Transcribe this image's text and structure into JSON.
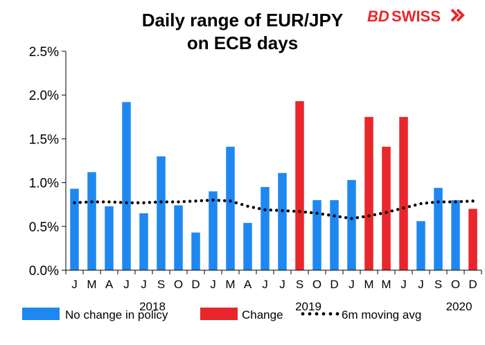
{
  "chart_data": {
    "type": "bar",
    "title_line1": "Daily range of EUR/JPY",
    "title_line2": "on ECB days",
    "logo": {
      "part1": "BD",
      "part2": "SWISS",
      "color": "#e8262b"
    },
    "ylim": [
      0,
      2.5
    ],
    "yticks": [
      "0.0%",
      "0.5%",
      "1.0%",
      "1.5%",
      "2.0%",
      "2.5%"
    ],
    "ytick_values": [
      0,
      0.5,
      1.0,
      1.5,
      2.0,
      2.5
    ],
    "categories": [
      "J",
      "M",
      "A",
      "J",
      "J",
      "S",
      "O",
      "D",
      "J",
      "M",
      "A",
      "J",
      "J",
      "S",
      "O",
      "D",
      "J",
      "M",
      "M",
      "J",
      "J",
      "S",
      "O",
      "D"
    ],
    "year_labels": [
      {
        "label": "2018",
        "center_index": 4.5
      },
      {
        "label": "2019",
        "center_index": 13.5
      },
      {
        "label": "2020",
        "center_index": 22.2
      }
    ],
    "series": [
      {
        "name": "No change in policy",
        "color": "#1e88f0",
        "values": [
          0.93,
          1.12,
          0.73,
          1.92,
          0.65,
          1.3,
          0.74,
          0.43,
          0.9,
          1.41,
          0.54,
          0.95,
          1.11,
          null,
          0.8,
          0.8,
          1.03,
          null,
          null,
          null,
          0.56,
          0.94,
          0.8,
          null
        ]
      },
      {
        "name": "Change",
        "color": "#e8262b",
        "values": [
          null,
          null,
          null,
          null,
          null,
          null,
          null,
          null,
          null,
          null,
          null,
          null,
          null,
          1.93,
          null,
          null,
          null,
          1.75,
          1.41,
          1.75,
          null,
          null,
          null,
          0.7
        ]
      }
    ],
    "moving_avg": {
      "name": "6m moving avg",
      "color": "#000000",
      "values": [
        0.77,
        0.78,
        0.78,
        0.77,
        0.77,
        0.78,
        0.78,
        0.79,
        0.8,
        0.79,
        0.73,
        0.69,
        0.68,
        0.67,
        0.65,
        0.62,
        0.59,
        0.62,
        0.66,
        0.71,
        0.76,
        0.78,
        0.78,
        0.79
      ]
    },
    "grid": false,
    "legend_position": "bottom"
  }
}
